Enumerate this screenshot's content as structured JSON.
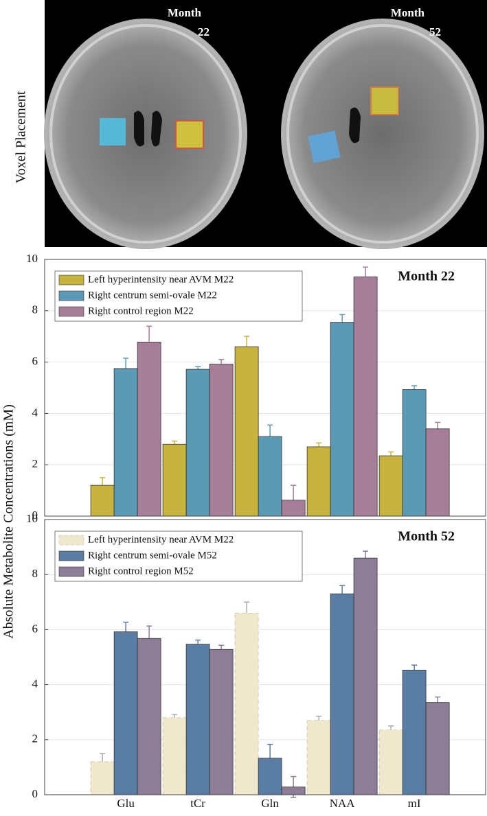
{
  "image_panel": {
    "label": "Voxel Placement",
    "titles": [
      [
        "Month",
        "22"
      ],
      [
        "Month",
        "52"
      ]
    ]
  },
  "shared_ylabel": "Absolute Metabolite Concentrations (mM)",
  "chart_data": [
    {
      "type": "bar",
      "title": "Month 22",
      "categories": [
        "Glu",
        "tCr",
        "Gln",
        "NAA",
        "mI"
      ],
      "series": [
        {
          "name": "Left hyperintensity near AVM M22",
          "color": "#c7b33d",
          "values": [
            1.2,
            2.8,
            6.6,
            2.7,
            2.35
          ],
          "errors": [
            0.3,
            0.12,
            0.4,
            0.15,
            0.15
          ]
        },
        {
          "name": "Right centrum semi-ovale M22",
          "color": "#5b9ab4",
          "values": [
            5.75,
            5.72,
            3.1,
            7.55,
            4.93
          ],
          "errors": [
            0.4,
            0.1,
            0.45,
            0.3,
            0.15
          ]
        },
        {
          "name": "Right control region M22",
          "color": "#a77e97",
          "values": [
            6.78,
            5.92,
            0.62,
            9.32,
            3.4
          ],
          "errors": [
            0.62,
            0.18,
            0.58,
            0.38,
            0.25
          ]
        }
      ],
      "ylim": [
        0,
        10
      ],
      "yticks": [
        0,
        2,
        4,
        6,
        8,
        10
      ],
      "grid": true,
      "legend": "upper left"
    },
    {
      "type": "bar",
      "title": "Month 52",
      "categories": [
        "Glu",
        "tCr",
        "Gln",
        "NAA",
        "mI"
      ],
      "series": [
        {
          "name": "Left hyperintensity near AVM M22",
          "color": "#efe8cc",
          "line_style": "dashed",
          "values": [
            1.2,
            2.8,
            6.6,
            2.7,
            2.35
          ],
          "errors": [
            0.3,
            0.12,
            0.4,
            0.15,
            0.15
          ]
        },
        {
          "name": "Right centrum semi-ovale M52",
          "color": "#5a7ea3",
          "values": [
            5.92,
            5.47,
            1.33,
            7.3,
            4.53
          ],
          "errors": [
            0.35,
            0.15,
            0.5,
            0.3,
            0.18
          ]
        },
        {
          "name": "Right control region M52",
          "color": "#8d7e98",
          "values": [
            5.68,
            5.28,
            0.28,
            8.6,
            3.35
          ],
          "errors": [
            0.45,
            0.15,
            0.38,
            0.25,
            0.2
          ]
        }
      ],
      "ylim": [
        0,
        10
      ],
      "yticks": [
        0,
        2,
        4,
        6,
        8,
        10
      ],
      "grid": true,
      "legend": "upper left"
    }
  ]
}
